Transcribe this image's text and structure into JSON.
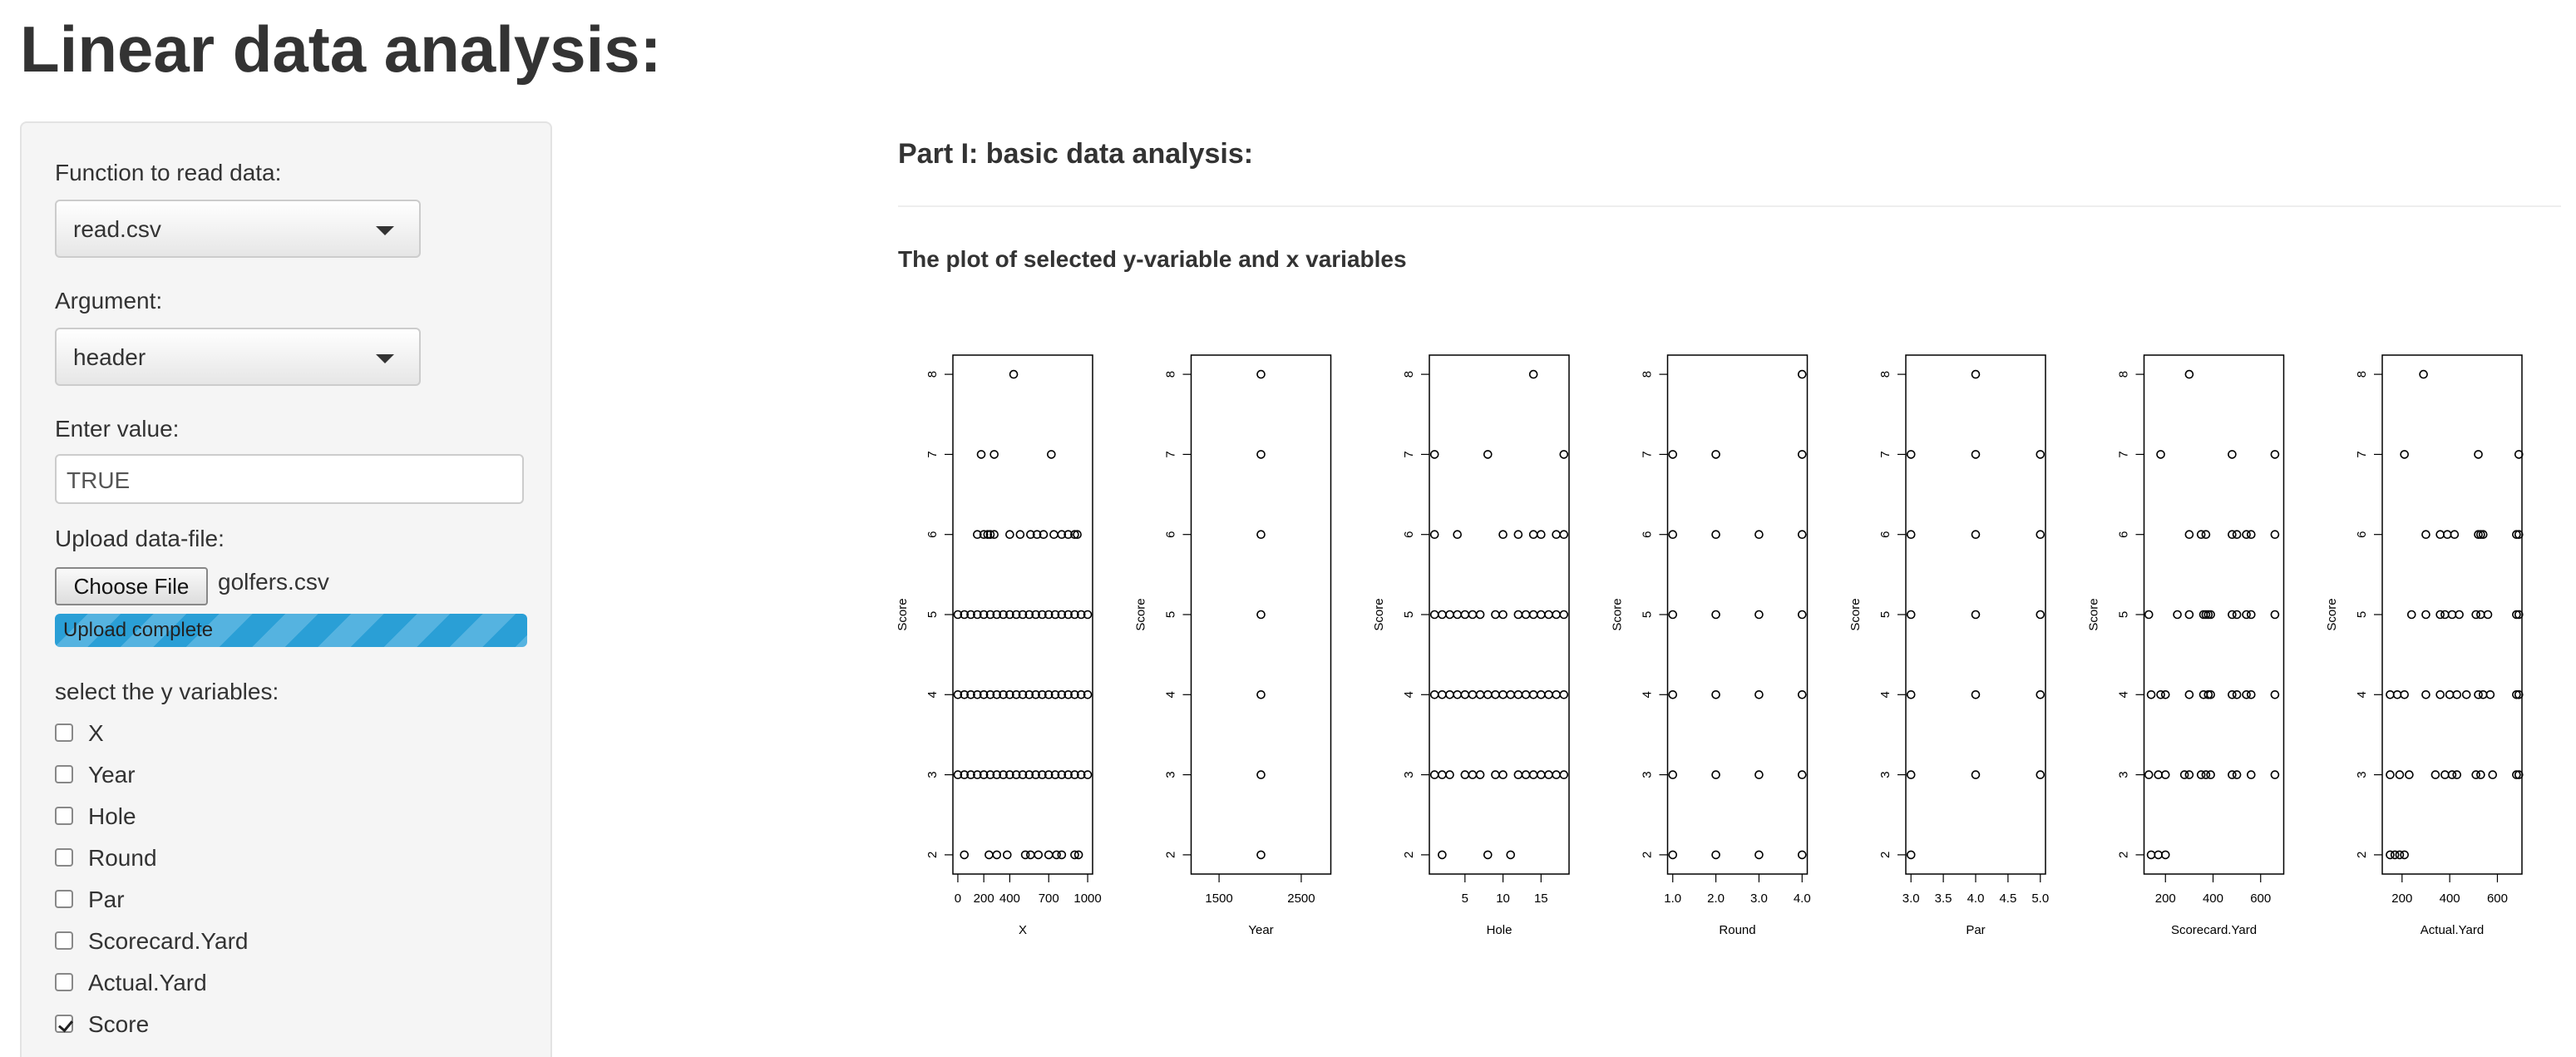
{
  "title": "Linear data analysis:",
  "sidebar": {
    "read_function_label": "Function to read data:",
    "read_function": "read.csv",
    "argument_label": "Argument:",
    "argument": "header",
    "value_label": "Enter value:",
    "value": "TRUE",
    "upload_label": "Upload data-file:",
    "upload_button": "Choose File",
    "file_name": "golfers.csv",
    "progress": "Upload complete",
    "y_label": "select the y variables:",
    "checkboxes": [
      {
        "label": "X",
        "checked": false
      },
      {
        "label": "Year",
        "checked": false
      },
      {
        "label": "Hole",
        "checked": false
      },
      {
        "label": "Round",
        "checked": false
      },
      {
        "label": "Par",
        "checked": false
      },
      {
        "label": "Scorecard.Yard",
        "checked": false
      },
      {
        "label": "Actual.Yard",
        "checked": false
      },
      {
        "label": "Score",
        "checked": true
      }
    ]
  },
  "main": {
    "heading": "Part I: basic data analysis:",
    "subheading": "The plot of selected y-variable and x variables"
  },
  "chart_data": [
    {
      "type": "scatter",
      "x_label": "X",
      "y_label": "Score",
      "xlim": [
        -38,
        1038
      ],
      "ylim": [
        1.76,
        8.24
      ],
      "xticks": [
        0,
        200,
        400,
        700,
        1000
      ],
      "yticks": [
        2,
        3,
        4,
        5,
        6,
        7,
        8
      ],
      "x": [
        430,
        180,
        280,
        720,
        150,
        200,
        230,
        250,
        280,
        400,
        480,
        560,
        610,
        660,
        740,
        800,
        850,
        900,
        920,
        0,
        50,
        100,
        150,
        200,
        250,
        300,
        350,
        400,
        450,
        500,
        550,
        600,
        650,
        700,
        750,
        800,
        850,
        900,
        950,
        1000,
        0,
        50,
        100,
        150,
        200,
        250,
        300,
        350,
        400,
        450,
        500,
        550,
        600,
        650,
        700,
        750,
        800,
        850,
        900,
        950,
        1000,
        0,
        50,
        100,
        150,
        200,
        250,
        300,
        350,
        400,
        450,
        500,
        550,
        600,
        650,
        700,
        750,
        800,
        850,
        900,
        950,
        1000,
        50,
        240,
        300,
        380,
        520,
        560,
        620,
        700,
        760,
        800,
        900,
        930
      ],
      "values": [
        8,
        7,
        7,
        7,
        6,
        6,
        6,
        6,
        6,
        6,
        6,
        6,
        6,
        6,
        6,
        6,
        6,
        6,
        6,
        5,
        5,
        5,
        5,
        5,
        5,
        5,
        5,
        5,
        5,
        5,
        5,
        5,
        5,
        5,
        5,
        5,
        5,
        5,
        5,
        5,
        4,
        4,
        4,
        4,
        4,
        4,
        4,
        4,
        4,
        4,
        4,
        4,
        4,
        4,
        4,
        4,
        4,
        4,
        4,
        4,
        4,
        3,
        3,
        3,
        3,
        3,
        3,
        3,
        3,
        3,
        3,
        3,
        3,
        3,
        3,
        3,
        3,
        3,
        3,
        3,
        3,
        3,
        2,
        2,
        2,
        2,
        2,
        2,
        2,
        2,
        2,
        2,
        2,
        2
      ]
    },
    {
      "type": "scatter",
      "x_label": "Year",
      "y_label": "Score",
      "xlim": [
        1160,
        2860
      ],
      "ylim": [
        1.76,
        8.24
      ],
      "xticks": [
        1500,
        2500
      ],
      "yticks": [
        2,
        3,
        4,
        5,
        6,
        7,
        8
      ],
      "x": [
        2010,
        2010,
        2010,
        2010,
        2010,
        2010,
        2010
      ],
      "values": [
        2,
        3,
        4,
        5,
        6,
        7,
        8
      ]
    },
    {
      "type": "scatter",
      "x_label": "Hole",
      "y_label": "Score",
      "xlim": [
        0.32,
        18.68
      ],
      "ylim": [
        1.76,
        8.24
      ],
      "xticks": [
        5,
        10,
        15
      ],
      "yticks": [
        2,
        3,
        4,
        5,
        6,
        7,
        8
      ],
      "x": [
        14,
        1,
        8,
        18,
        1,
        4,
        10,
        12,
        14,
        15,
        17,
        18,
        1,
        2,
        3,
        4,
        5,
        6,
        7,
        9,
        10,
        12,
        13,
        14,
        15,
        16,
        17,
        18,
        1,
        2,
        3,
        4,
        5,
        6,
        7,
        8,
        9,
        10,
        11,
        12,
        13,
        14,
        15,
        16,
        17,
        18,
        1,
        2,
        3,
        5,
        6,
        7,
        9,
        10,
        12,
        13,
        14,
        15,
        16,
        17,
        18,
        2,
        8,
        11
      ],
      "values": [
        8,
        7,
        7,
        7,
        6,
        6,
        6,
        6,
        6,
        6,
        6,
        6,
        5,
        5,
        5,
        5,
        5,
        5,
        5,
        5,
        5,
        5,
        5,
        5,
        5,
        5,
        5,
        5,
        4,
        4,
        4,
        4,
        4,
        4,
        4,
        4,
        4,
        4,
        4,
        4,
        4,
        4,
        4,
        4,
        4,
        4,
        3,
        3,
        3,
        3,
        3,
        3,
        3,
        3,
        3,
        3,
        3,
        3,
        3,
        3,
        3,
        2,
        2,
        2
      ]
    },
    {
      "type": "scatter",
      "x_label": "Round",
      "y_label": "Score",
      "xlim": [
        0.88,
        4.12
      ],
      "ylim": [
        1.76,
        8.24
      ],
      "xticks": [
        {
          "value": 1,
          "label": "1.0"
        },
        {
          "value": 2,
          "label": "2.0"
        },
        {
          "value": 3,
          "label": "3.0"
        },
        {
          "value": 4,
          "label": "4.0"
        }
      ],
      "yticks": [
        2,
        3,
        4,
        5,
        6,
        7,
        8
      ],
      "x": [
        4,
        1,
        2,
        4,
        1,
        2,
        3,
        4,
        1,
        2,
        3,
        4,
        1,
        2,
        3,
        4,
        1,
        2,
        3,
        4,
        1,
        2,
        3,
        4
      ],
      "values": [
        8,
        7,
        7,
        7,
        6,
        6,
        6,
        6,
        5,
        5,
        5,
        5,
        4,
        4,
        4,
        4,
        3,
        3,
        3,
        3,
        2,
        2,
        2,
        2
      ]
    },
    {
      "type": "scatter",
      "x_label": "Par",
      "y_label": "Score",
      "xlim": [
        2.92,
        5.08
      ],
      "ylim": [
        1.76,
        8.24
      ],
      "xticks": [
        {
          "value": 3,
          "label": "3.0"
        },
        {
          "value": 3.5,
          "label": "3.5"
        },
        {
          "value": 4,
          "label": "4.0"
        },
        {
          "value": 4.5,
          "label": "4.5"
        },
        {
          "value": 5,
          "label": "5.0"
        }
      ],
      "yticks": [
        2,
        3,
        4,
        5,
        6,
        7,
        8
      ],
      "x": [
        4,
        3,
        4,
        5,
        3,
        4,
        5,
        3,
        4,
        5,
        3,
        4,
        5,
        3,
        4,
        5,
        3
      ],
      "values": [
        8,
        7,
        7,
        7,
        6,
        6,
        6,
        5,
        5,
        5,
        4,
        4,
        4,
        3,
        3,
        3,
        2
      ]
    },
    {
      "type": "scatter",
      "x_label": "Scorecard.Yard",
      "y_label": "Score",
      "xlim": [
        110,
        697
      ],
      "ylim": [
        1.76,
        8.24
      ],
      "xticks": [
        200,
        400,
        600
      ],
      "yticks": [
        2,
        3,
        4,
        5,
        6,
        7,
        8
      ],
      "x": [
        300,
        180,
        480,
        660,
        300,
        350,
        370,
        480,
        500,
        540,
        560,
        660,
        130,
        250,
        300,
        360,
        370,
        380,
        390,
        480,
        500,
        540,
        560,
        660,
        140,
        180,
        200,
        300,
        360,
        380,
        390,
        480,
        500,
        540,
        560,
        660,
        130,
        170,
        200,
        280,
        300,
        350,
        370,
        390,
        480,
        500,
        560,
        660,
        140,
        170,
        200
      ],
      "values": [
        8,
        7,
        7,
        7,
        6,
        6,
        6,
        6,
        6,
        6,
        6,
        6,
        5,
        5,
        5,
        5,
        5,
        5,
        5,
        5,
        5,
        5,
        5,
        5,
        4,
        4,
        4,
        4,
        4,
        4,
        4,
        4,
        4,
        4,
        4,
        4,
        3,
        3,
        3,
        3,
        3,
        3,
        3,
        3,
        3,
        3,
        3,
        3,
        2,
        2,
        2
      ]
    },
    {
      "type": "scatter",
      "x_label": "Actual.Yard",
      "y_label": "Score",
      "xlim": [
        117,
        703
      ],
      "ylim": [
        1.76,
        8.24
      ],
      "xticks": [
        200,
        400,
        600
      ],
      "yticks": [
        2,
        3,
        4,
        5,
        6,
        7,
        8
      ],
      "x": [
        290,
        210,
        520,
        690,
        300,
        360,
        390,
        420,
        520,
        530,
        540,
        680,
        690,
        240,
        300,
        360,
        380,
        410,
        440,
        510,
        530,
        560,
        680,
        690,
        150,
        180,
        210,
        300,
        360,
        400,
        430,
        470,
        520,
        540,
        570,
        680,
        690,
        150,
        190,
        230,
        340,
        380,
        410,
        430,
        510,
        530,
        580,
        680,
        690,
        150,
        170,
        190,
        210
      ],
      "values": [
        8,
        7,
        7,
        7,
        6,
        6,
        6,
        6,
        6,
        6,
        6,
        6,
        6,
        5,
        5,
        5,
        5,
        5,
        5,
        5,
        5,
        5,
        5,
        5,
        4,
        4,
        4,
        4,
        4,
        4,
        4,
        4,
        4,
        4,
        4,
        4,
        4,
        3,
        3,
        3,
        3,
        3,
        3,
        3,
        3,
        3,
        3,
        3,
        3,
        2,
        2,
        2,
        2
      ]
    }
  ]
}
